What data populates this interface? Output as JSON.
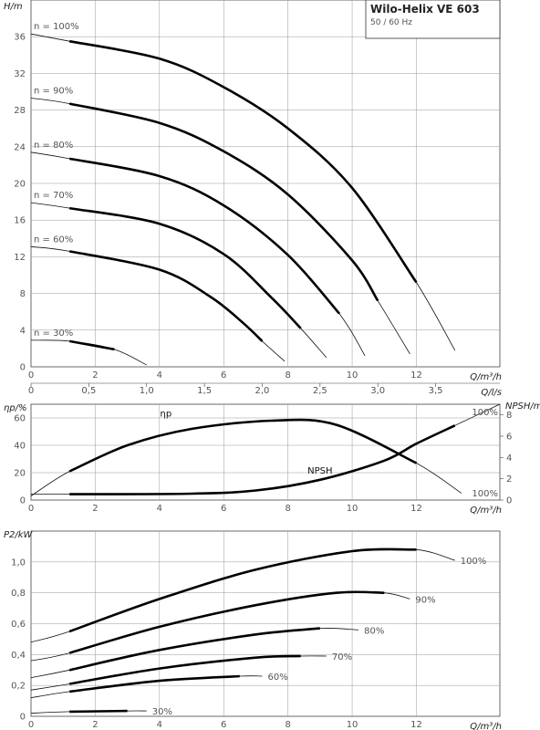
{
  "title": "Wilo-Helix VE 603",
  "subtitle": "50 / 60 Hz",
  "chart_data": [
    {
      "type": "line",
      "name": "head",
      "xlabel": "Q/m³/h",
      "ylabel": "H/m",
      "xlim": [
        0,
        14.6
      ],
      "ylim": [
        0,
        40
      ],
      "x_ticks": [
        "0",
        "2",
        "4",
        "6",
        "8",
        "10",
        "12"
      ],
      "y_ticks": [
        "0",
        "4",
        "8",
        "12",
        "16",
        "20",
        "24",
        "28",
        "32",
        "36"
      ],
      "secondary_x_label": "Q/l/s",
      "secondary_x_ticks": [
        "0",
        "0,5",
        "1,0",
        "1,5",
        "2,0",
        "2,5",
        "3,0",
        "3,5"
      ],
      "grid": true,
      "series": [
        {
          "name": "n = 100%",
          "label": "n = 100%",
          "x": [
            0,
            1.2,
            4,
            6,
            8,
            10,
            12,
            13.2
          ],
          "y": [
            36.3,
            35.5,
            33.6,
            30.5,
            26,
            19.5,
            9.2,
            1.8
          ]
        },
        {
          "name": "n = 90%",
          "label": "n = 90%",
          "x": [
            0,
            1.2,
            4,
            6,
            8,
            10,
            10.8,
            11.8
          ],
          "y": [
            29.3,
            28.7,
            26.6,
            23.5,
            18.8,
            11.6,
            7.2,
            1.4
          ]
        },
        {
          "name": "n = 80%",
          "label": "n = 80%",
          "x": [
            0,
            1.2,
            4,
            6,
            8,
            9.6,
            10.4
          ],
          "y": [
            23.4,
            22.7,
            20.8,
            17.6,
            12.2,
            5.8,
            1.2
          ]
        },
        {
          "name": "n = 70%",
          "label": "n = 70%",
          "x": [
            0,
            1.2,
            4,
            6,
            7.5,
            8.4,
            9.2
          ],
          "y": [
            17.9,
            17.3,
            15.6,
            12.3,
            7.5,
            4.2,
            1
          ]
        },
        {
          "name": "n = 60%",
          "label": "n = 60%",
          "x": [
            0,
            1.2,
            4,
            5.6,
            6.6,
            7.2,
            7.9
          ],
          "y": [
            13.1,
            12.6,
            10.6,
            7.6,
            4.8,
            2.8,
            0.6
          ]
        },
        {
          "name": "n = 30%",
          "label": "n = 30%",
          "x": [
            0,
            1.2,
            2.6,
            3.6
          ],
          "y": [
            2.9,
            2.8,
            1.9,
            0.2
          ]
        }
      ]
    },
    {
      "type": "line",
      "name": "efficiency-npsh",
      "xlabel": "Q/m³/h",
      "ylabel": "ηp/%",
      "y2label": "NPSH/m",
      "xlim": [
        0,
        14.6
      ],
      "ylim": [
        0,
        70
      ],
      "y2lim": [
        0,
        9
      ],
      "x_ticks": [
        "0",
        "2",
        "4",
        "6",
        "8",
        "10",
        "12"
      ],
      "y_ticks": [
        "0",
        "20",
        "40",
        "60"
      ],
      "y2_ticks": [
        "0",
        "2",
        "4",
        "6",
        "8"
      ],
      "grid": true,
      "series": [
        {
          "name": "ηp",
          "label": "ηp",
          "label_end": "100%",
          "axis": "left",
          "x": [
            0,
            1.2,
            3,
            5,
            7.5,
            9.5,
            12,
            13.4
          ],
          "y": [
            3,
            21,
            40,
            52,
            58,
            55,
            27,
            5
          ]
        },
        {
          "name": "NPSH",
          "label": "NPSH",
          "label_end": "100%",
          "axis": "right",
          "x": [
            0,
            1.2,
            5,
            7,
            9,
            11,
            12,
            13.2,
            14.6
          ],
          "y": [
            0.55,
            0.55,
            0.6,
            0.9,
            1.9,
            3.7,
            5.3,
            7,
            9
          ]
        }
      ]
    },
    {
      "type": "line",
      "name": "power",
      "xlabel": "Q/m³/h",
      "ylabel": "P2/kW",
      "xlim": [
        0,
        14.6
      ],
      "ylim": [
        0,
        1.2
      ],
      "x_ticks": [
        "0",
        "2",
        "4",
        "6",
        "8",
        "10",
        "12"
      ],
      "y_ticks": [
        "0",
        "0,2",
        "0,4",
        "0,6",
        "0,8",
        "1,0"
      ],
      "grid": true,
      "series": [
        {
          "name": "100%",
          "label": "100%",
          "x": [
            0,
            1.2,
            4,
            7,
            10,
            12,
            13.2
          ],
          "y": [
            0.48,
            0.55,
            0.76,
            0.95,
            1.07,
            1.08,
            1.01
          ]
        },
        {
          "name": "90%",
          "label": "90%",
          "x": [
            0,
            1.2,
            4,
            7,
            9.5,
            11,
            11.8
          ],
          "y": [
            0.36,
            0.41,
            0.58,
            0.72,
            0.8,
            0.8,
            0.76
          ]
        },
        {
          "name": "80%",
          "label": "80%",
          "x": [
            0,
            1.2,
            4,
            7,
            9,
            10.2
          ],
          "y": [
            0.25,
            0.3,
            0.43,
            0.53,
            0.57,
            0.56
          ]
        },
        {
          "name": "70%",
          "label": "70%",
          "x": [
            0,
            1.2,
            4,
            7,
            8.4,
            9.2
          ],
          "y": [
            0.17,
            0.21,
            0.31,
            0.38,
            0.39,
            0.39
          ]
        },
        {
          "name": "60%",
          "label": "60%",
          "x": [
            0,
            1.2,
            4,
            6.5,
            7.2
          ],
          "y": [
            0.12,
            0.16,
            0.23,
            0.26,
            0.26
          ]
        },
        {
          "name": "30%",
          "label": "30%",
          "x": [
            0,
            1.2,
            3,
            3.6
          ],
          "y": [
            0.02,
            0.03,
            0.035,
            0.035
          ]
        }
      ]
    }
  ]
}
